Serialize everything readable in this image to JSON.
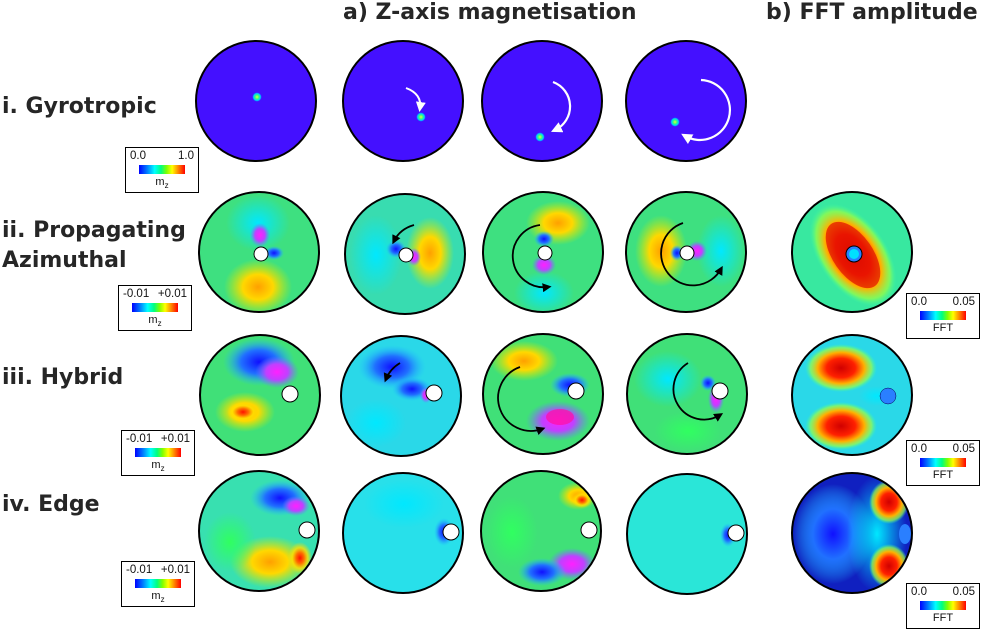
{
  "headers": {
    "a": "a) Z-axis magnetisation",
    "b": "b) FFT amplitude"
  },
  "rows": [
    {
      "label_line1": "i. Gyrotropic",
      "label_line2": ""
    },
    {
      "label_line1": "ii. Propagating",
      "label_line2": "Azimuthal"
    },
    {
      "label_line1": "iii. Hybrid",
      "label_line2": ""
    },
    {
      "label_line1": "iv. Edge",
      "label_line2": ""
    }
  ],
  "colorbars": {
    "gyro": {
      "min": "0.0",
      "max": "1.0",
      "unit": "m",
      "sub": "z"
    },
    "azim": {
      "min": "-0.01",
      "max": "+0.01",
      "unit": "m",
      "sub": "z"
    },
    "hybrid": {
      "min": "-0.01",
      "max": "+0.01",
      "unit": "m",
      "sub": "z"
    },
    "edge": {
      "min": "-0.01",
      "max": "+0.01",
      "unit": "m",
      "sub": "z"
    },
    "fft_azim": {
      "min": "0.0",
      "max": "0.05",
      "unit": "FFT"
    },
    "fft_hybrid": {
      "min": "0.0",
      "max": "0.05",
      "unit": "FFT"
    },
    "fft_edge": {
      "min": "0.0",
      "max": "0.05",
      "unit": "FFT"
    }
  },
  "colors": {
    "gyro_bg": "#4410ff",
    "field_green": "#38e07a",
    "fft_red": "#e51a12",
    "arrow_white": "#ffffff",
    "arrow_black": "#000000"
  }
}
